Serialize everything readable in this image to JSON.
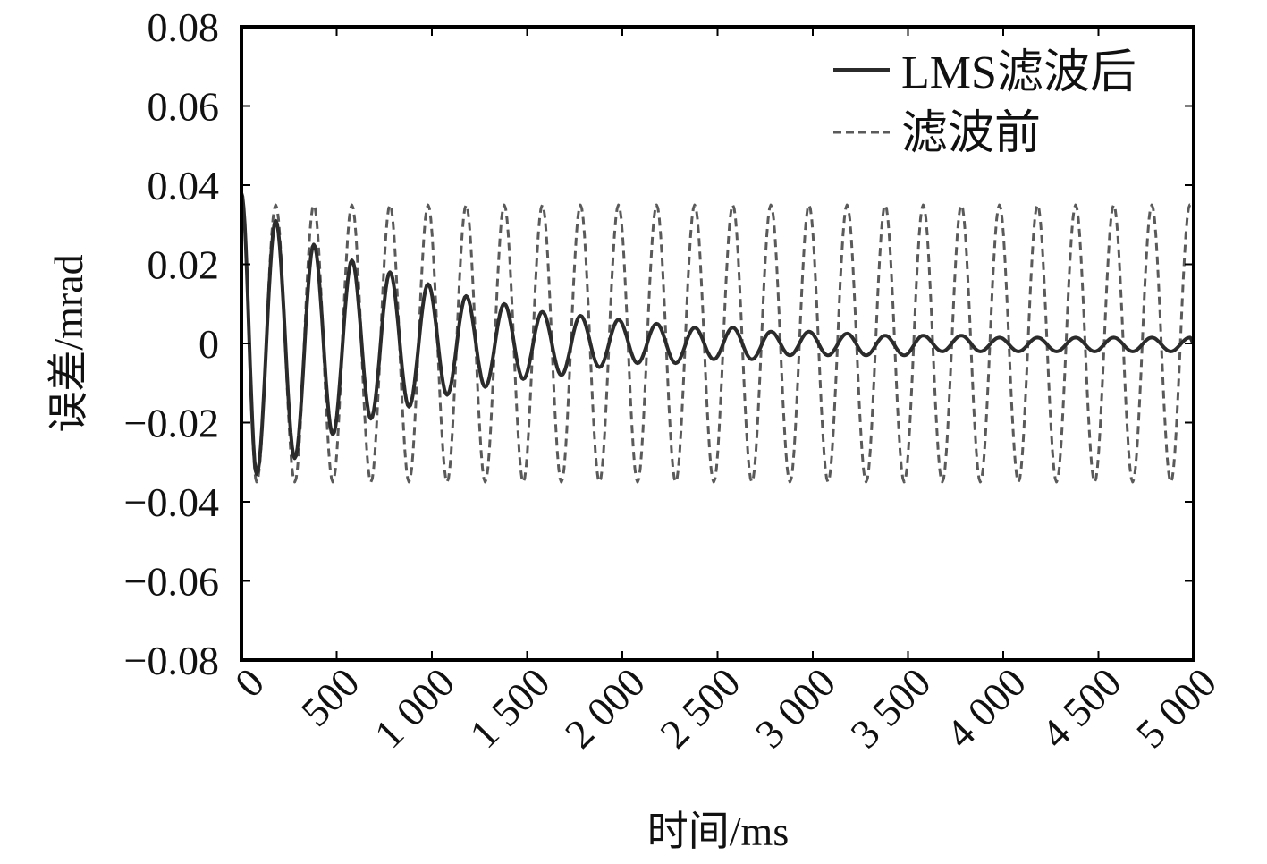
{
  "chart_data": {
    "type": "line",
    "title": "",
    "xlabel": "时间/ms",
    "ylabel": "误差/mrad",
    "xlim": [
      0,
      5000
    ],
    "ylim": [
      -0.08,
      0.08
    ],
    "grid": false,
    "legend_position": "top-right",
    "xticks": [
      0,
      500,
      1000,
      1500,
      2000,
      2500,
      3000,
      3500,
      4000,
      4500,
      5000
    ],
    "xtick_labels": [
      "0",
      "500",
      "1 000",
      "1 500",
      "2 000",
      "2 500",
      "3 000",
      "3 500",
      "4 000",
      "4 500",
      "5 000"
    ],
    "yticks": [
      0.08,
      0.06,
      0.04,
      0.02,
      0,
      -0.02,
      -0.04,
      -0.06,
      -0.08
    ],
    "ytick_labels": [
      "0.08",
      "0.06",
      "0.04",
      "0.02",
      "0",
      "−0.02",
      "−0.04",
      "−0.06",
      "−0.08"
    ],
    "series": [
      {
        "name": "LMS滤波后",
        "style": "solid",
        "color": "#2b2b2b",
        "x": [
          0,
          80,
          180,
          280,
          380,
          480,
          580,
          680,
          780,
          880,
          980,
          1080,
          1180,
          1280,
          1380,
          1480,
          1580,
          1680,
          1780,
          1880,
          1980,
          2080,
          2180,
          2280,
          2380,
          2480,
          2580,
          2680,
          2780,
          2880,
          2980,
          3080,
          3180,
          3280,
          3380,
          3480,
          3580,
          3680,
          3780,
          3880,
          3980,
          4080,
          4180,
          4280,
          4380,
          4480,
          4580,
          4680,
          4780,
          4880,
          4980,
          5000
        ],
        "y": [
          0.038,
          -0.033,
          0.031,
          -0.029,
          0.025,
          -0.023,
          0.021,
          -0.019,
          0.018,
          -0.016,
          0.015,
          -0.013,
          0.012,
          -0.011,
          0.01,
          -0.009,
          0.008,
          -0.008,
          0.007,
          -0.006,
          0.006,
          -0.005,
          0.005,
          -0.005,
          0.004,
          -0.004,
          0.004,
          -0.004,
          0.003,
          -0.003,
          0.003,
          -0.003,
          0.0025,
          -0.003,
          0.002,
          -0.003,
          0.002,
          -0.002,
          0.002,
          -0.002,
          0.0015,
          -0.002,
          0.0015,
          -0.002,
          0.0015,
          -0.002,
          0.0015,
          -0.002,
          0.0015,
          -0.002,
          0.0015,
          0.0
        ]
      },
      {
        "name": "滤波前",
        "style": "dashed",
        "color": "#5a5a5a",
        "x": [
          0,
          80,
          180,
          280,
          380,
          480,
          580,
          680,
          780,
          880,
          980,
          1080,
          1180,
          1280,
          1380,
          1480,
          1580,
          1680,
          1780,
          1880,
          1980,
          2080,
          2180,
          2280,
          2380,
          2480,
          2580,
          2680,
          2780,
          2880,
          2980,
          3080,
          3180,
          3280,
          3380,
          3480,
          3580,
          3680,
          3780,
          3880,
          3980,
          4080,
          4180,
          4280,
          4380,
          4480,
          4580,
          4680,
          4780,
          4880,
          4980,
          5000
        ],
        "y": [
          0.038,
          -0.035,
          0.035,
          -0.035,
          0.035,
          -0.035,
          0.035,
          -0.035,
          0.035,
          -0.035,
          0.035,
          -0.035,
          0.035,
          -0.035,
          0.035,
          -0.035,
          0.035,
          -0.035,
          0.035,
          -0.035,
          0.035,
          -0.035,
          0.035,
          -0.035,
          0.035,
          -0.035,
          0.035,
          -0.035,
          0.035,
          -0.035,
          0.035,
          -0.035,
          0.035,
          -0.035,
          0.035,
          -0.035,
          0.035,
          -0.035,
          0.035,
          -0.035,
          0.035,
          -0.035,
          0.035,
          -0.035,
          0.035,
          -0.035,
          0.035,
          -0.035,
          0.035,
          -0.035,
          0.035,
          0.034
        ]
      }
    ]
  }
}
